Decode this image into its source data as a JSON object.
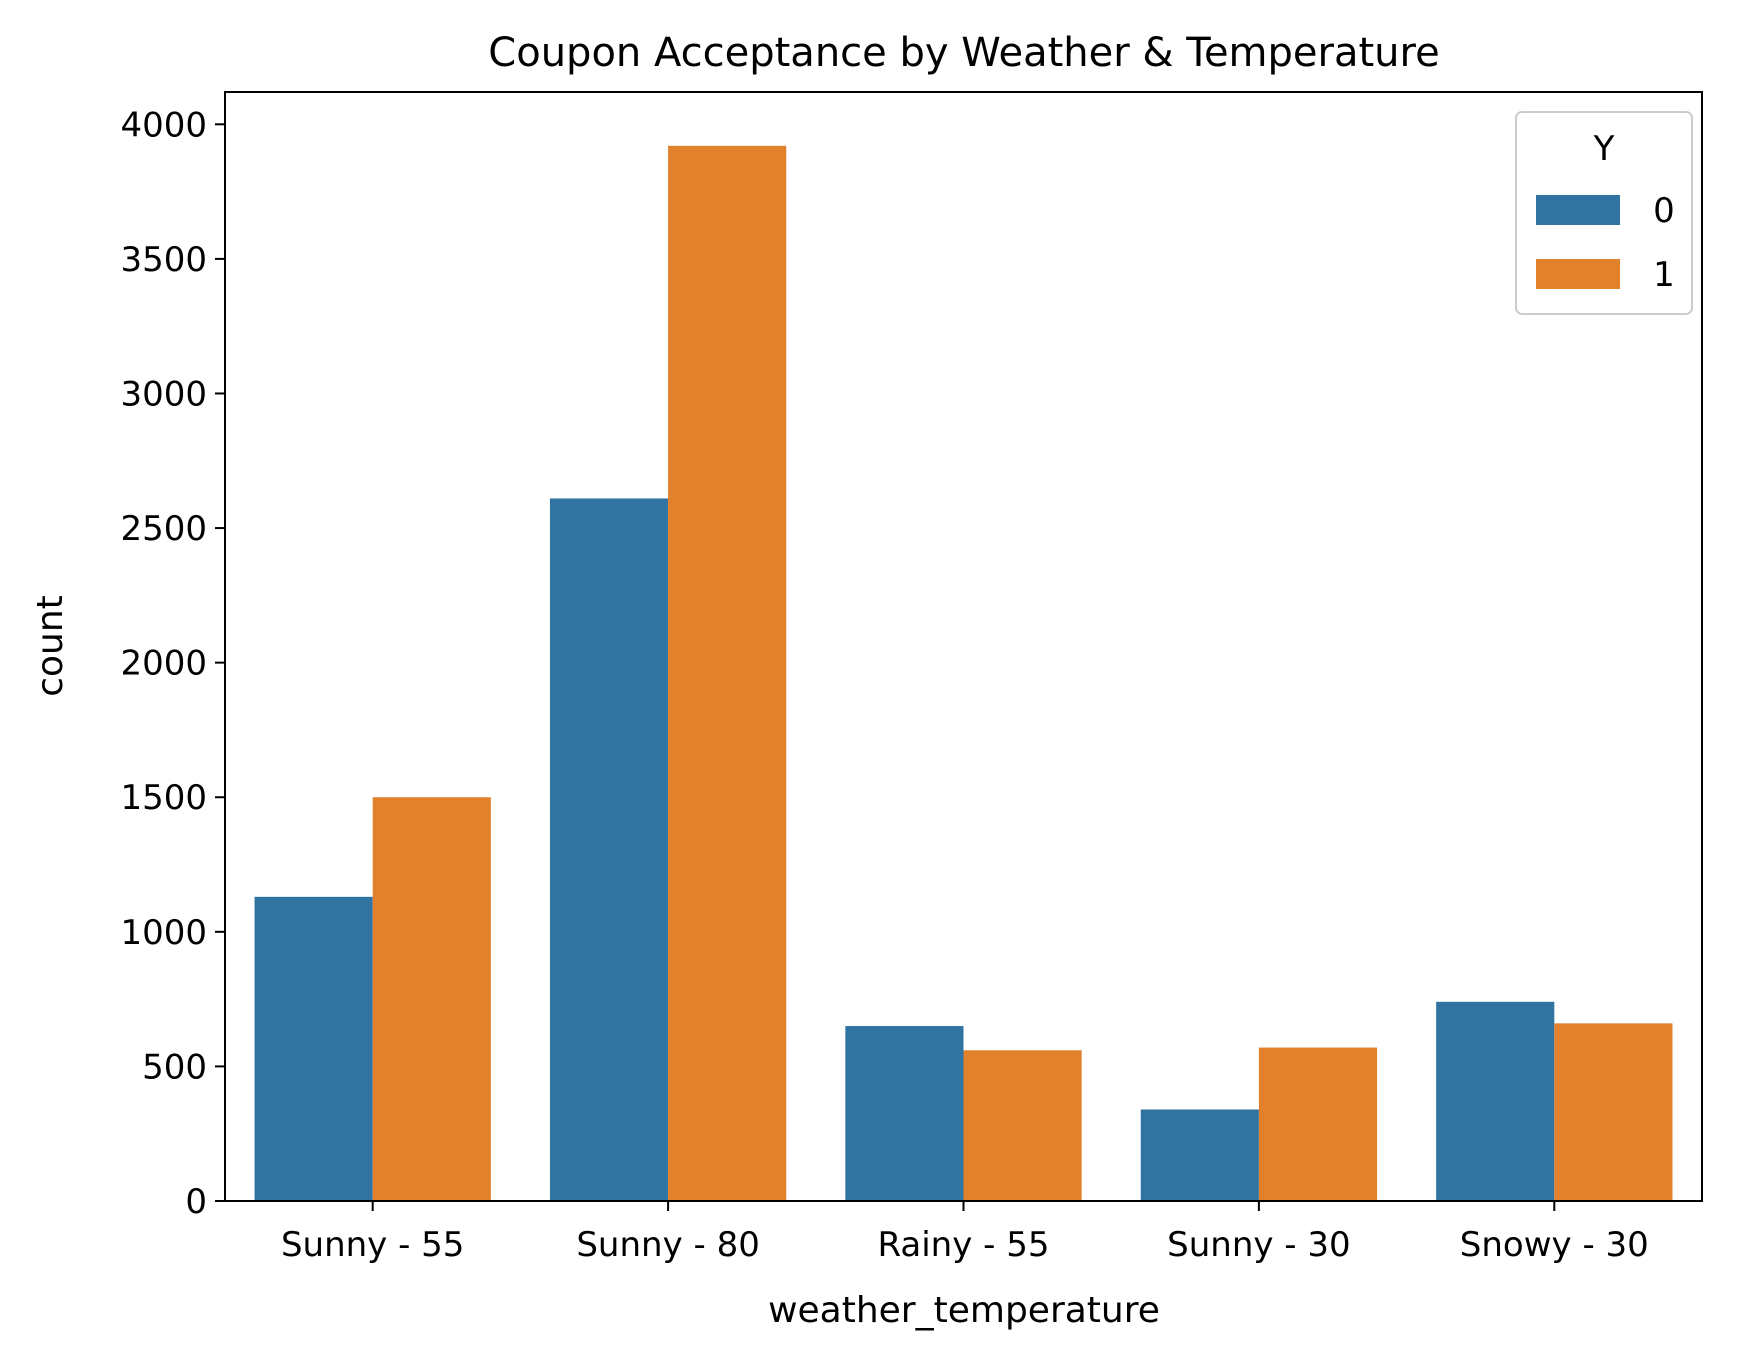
{
  "chart_data": {
    "type": "bar",
    "title": "Coupon Acceptance by Weather & Temperature",
    "xlabel": "weather_temperature",
    "ylabel": "count",
    "categories": [
      "Sunny - 55",
      "Sunny - 80",
      "Rainy - 55",
      "Sunny - 30",
      "Snowy - 30"
    ],
    "series": [
      {
        "name": "0",
        "color": "#3274a1",
        "values": [
          1130,
          2610,
          650,
          340,
          740
        ]
      },
      {
        "name": "1",
        "color": "#e1812c",
        "values": [
          1500,
          3920,
          560,
          570,
          660
        ]
      }
    ],
    "ylim": [
      0,
      4120
    ],
    "yticks": [
      0,
      500,
      1000,
      1500,
      2000,
      2500,
      3000,
      3500,
      4000
    ],
    "legend": {
      "title": "Y",
      "placement": "top-right"
    },
    "grid": false
  }
}
